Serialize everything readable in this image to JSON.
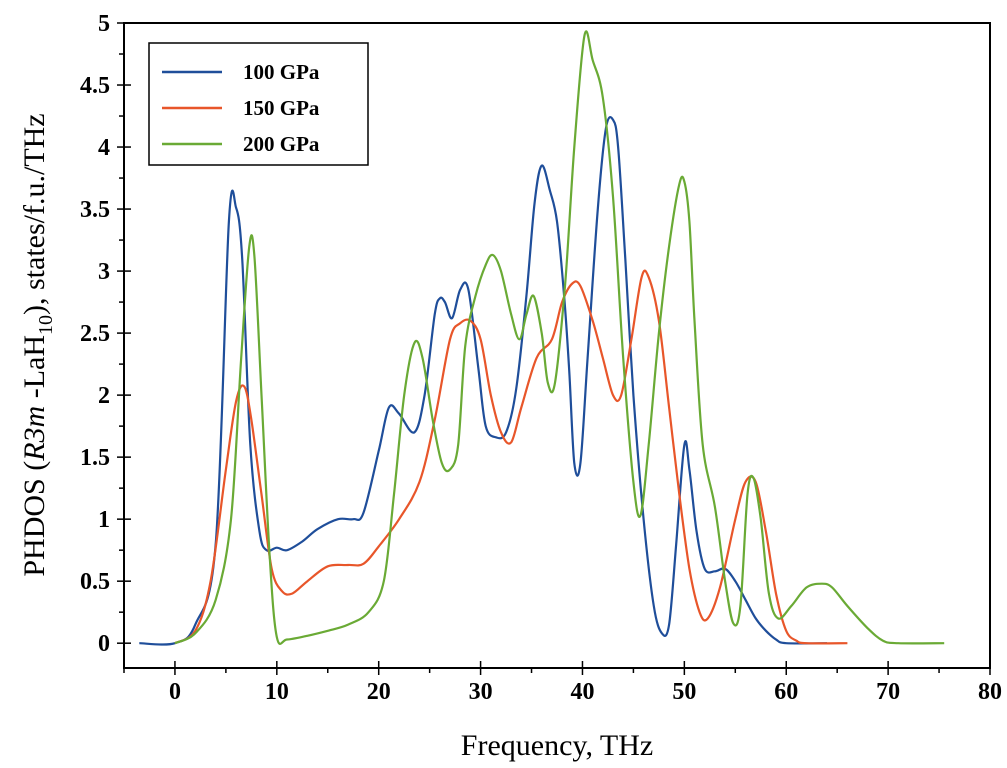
{
  "chart_data": {
    "type": "line",
    "xlabel": "Frequency, THz",
    "ylabel": {
      "prefix": "PHDOS (",
      "italic": "R3m",
      "mid": " -LaH",
      "sub": "10",
      "suffix": "), states/f.u./THz"
    },
    "xlim": [
      -5,
      80
    ],
    "ylim": [
      -0.2,
      5
    ],
    "xticks": [
      0,
      10,
      20,
      30,
      40,
      50,
      60,
      70,
      80
    ],
    "yticks": [
      0,
      0.5,
      1,
      1.5,
      2,
      2.5,
      3,
      3.5,
      4,
      4.5,
      5
    ],
    "ytick_labels": [
      "0",
      "0.5",
      "1",
      "1.5",
      "2",
      "2.5",
      "3",
      "3.5",
      "4",
      "4.5",
      "5"
    ],
    "legend_position": "top-left",
    "series": [
      {
        "name": "100 GPa",
        "color": "#1f4e9a",
        "points": [
          [
            -3.5,
            0
          ],
          [
            0,
            0
          ],
          [
            2,
            0.15
          ],
          [
            4,
            0.8
          ],
          [
            5.3,
            3.4
          ],
          [
            6,
            3.51
          ],
          [
            6.6,
            3.1
          ],
          [
            7.4,
            1.6
          ],
          [
            8.3,
            0.9
          ],
          [
            9,
            0.75
          ],
          [
            10,
            0.77
          ],
          [
            11,
            0.75
          ],
          [
            12.5,
            0.82
          ],
          [
            14,
            0.92
          ],
          [
            16,
            1.0
          ],
          [
            17.5,
            1.0
          ],
          [
            18.5,
            1.05
          ],
          [
            20,
            1.55
          ],
          [
            21,
            1.9
          ],
          [
            22,
            1.85
          ],
          [
            23.5,
            1.7
          ],
          [
            24.5,
            2.0
          ],
          [
            25.5,
            2.65
          ],
          [
            26,
            2.78
          ],
          [
            26.5,
            2.75
          ],
          [
            27.2,
            2.62
          ],
          [
            28,
            2.85
          ],
          [
            28.8,
            2.85
          ],
          [
            29.8,
            2.2
          ],
          [
            30.5,
            1.75
          ],
          [
            31.5,
            1.66
          ],
          [
            32.5,
            1.7
          ],
          [
            33.5,
            2.05
          ],
          [
            34.5,
            2.8
          ],
          [
            35.3,
            3.55
          ],
          [
            36,
            3.85
          ],
          [
            36.8,
            3.65
          ],
          [
            37.5,
            3.4
          ],
          [
            38.2,
            2.8
          ],
          [
            38.7,
            2.2
          ],
          [
            39.2,
            1.45
          ],
          [
            39.8,
            1.45
          ],
          [
            40.5,
            2.3
          ],
          [
            41.5,
            3.5
          ],
          [
            42.3,
            4.15
          ],
          [
            43,
            4.22
          ],
          [
            43.5,
            4.0
          ],
          [
            44.2,
            3.1
          ],
          [
            45,
            2.0
          ],
          [
            46,
            1.0
          ],
          [
            47,
            0.3
          ],
          [
            47.8,
            0.08
          ],
          [
            48.5,
            0.15
          ],
          [
            49.2,
            0.8
          ],
          [
            50,
            1.6
          ],
          [
            50.5,
            1.4
          ],
          [
            51.2,
            0.9
          ],
          [
            52,
            0.6
          ],
          [
            53,
            0.58
          ],
          [
            54,
            0.6
          ],
          [
            55,
            0.5
          ],
          [
            56,
            0.35
          ],
          [
            57,
            0.2
          ],
          [
            58,
            0.1
          ],
          [
            59,
            0.03
          ],
          [
            60,
            0.0
          ],
          [
            64,
            0.0
          ]
        ]
      },
      {
        "name": "150 GPa",
        "color": "#e8562a",
        "points": [
          [
            0,
            0
          ],
          [
            2,
            0.1
          ],
          [
            3.5,
            0.5
          ],
          [
            5,
            1.4
          ],
          [
            6,
            1.95
          ],
          [
            6.8,
            2.07
          ],
          [
            7.5,
            1.8
          ],
          [
            8.5,
            1.2
          ],
          [
            9.5,
            0.6
          ],
          [
            10.5,
            0.42
          ],
          [
            11.5,
            0.4
          ],
          [
            13,
            0.5
          ],
          [
            15,
            0.62
          ],
          [
            17,
            0.63
          ],
          [
            18.5,
            0.64
          ],
          [
            20,
            0.78
          ],
          [
            22,
            1.0
          ],
          [
            24,
            1.3
          ],
          [
            25.5,
            1.8
          ],
          [
            27,
            2.45
          ],
          [
            28,
            2.58
          ],
          [
            29,
            2.6
          ],
          [
            30,
            2.45
          ],
          [
            31,
            2.0
          ],
          [
            32,
            1.7
          ],
          [
            33,
            1.62
          ],
          [
            34,
            1.9
          ],
          [
            35.5,
            2.3
          ],
          [
            37,
            2.45
          ],
          [
            38,
            2.75
          ],
          [
            39,
            2.9
          ],
          [
            39.8,
            2.88
          ],
          [
            41,
            2.6
          ],
          [
            42,
            2.3
          ],
          [
            43,
            2.0
          ],
          [
            43.8,
            2.0
          ],
          [
            44.8,
            2.45
          ],
          [
            45.8,
            2.95
          ],
          [
            46.5,
            2.95
          ],
          [
            47.5,
            2.6
          ],
          [
            48.5,
            1.9
          ],
          [
            49.5,
            1.2
          ],
          [
            50.5,
            0.6
          ],
          [
            51.5,
            0.25
          ],
          [
            52.3,
            0.2
          ],
          [
            53.5,
            0.45
          ],
          [
            55,
            1.0
          ],
          [
            56,
            1.3
          ],
          [
            57,
            1.3
          ],
          [
            58,
            0.9
          ],
          [
            59,
            0.4
          ],
          [
            60,
            0.1
          ],
          [
            61,
            0.02
          ],
          [
            62,
            0
          ],
          [
            66,
            0
          ]
        ]
      },
      {
        "name": "200 GPa",
        "color": "#6aaa35",
        "points": [
          [
            0,
            0
          ],
          [
            2,
            0.08
          ],
          [
            4,
            0.35
          ],
          [
            5.5,
            1.0
          ],
          [
            6.5,
            2.3
          ],
          [
            7.3,
            3.2
          ],
          [
            7.8,
            3.12
          ],
          [
            8.5,
            2.0
          ],
          [
            9.3,
            0.7
          ],
          [
            10,
            0.05
          ],
          [
            11,
            0.03
          ],
          [
            13,
            0.06
          ],
          [
            15,
            0.1
          ],
          [
            17,
            0.15
          ],
          [
            19,
            0.25
          ],
          [
            20.5,
            0.5
          ],
          [
            21.5,
            1.2
          ],
          [
            22.5,
            2.0
          ],
          [
            23.5,
            2.42
          ],
          [
            24.3,
            2.3
          ],
          [
            25.3,
            1.8
          ],
          [
            26.2,
            1.45
          ],
          [
            27,
            1.4
          ],
          [
            27.8,
            1.6
          ],
          [
            28.5,
            2.4
          ],
          [
            29.5,
            2.8
          ],
          [
            30.5,
            3.05
          ],
          [
            31.2,
            3.13
          ],
          [
            32,
            3.0
          ],
          [
            33,
            2.65
          ],
          [
            33.8,
            2.45
          ],
          [
            34.5,
            2.65
          ],
          [
            35.2,
            2.8
          ],
          [
            36,
            2.5
          ],
          [
            36.6,
            2.1
          ],
          [
            37.3,
            2.1
          ],
          [
            38.3,
            2.9
          ],
          [
            39.2,
            4.0
          ],
          [
            40.2,
            4.9
          ],
          [
            41,
            4.7
          ],
          [
            42,
            4.4
          ],
          [
            43,
            3.6
          ],
          [
            44,
            2.3
          ],
          [
            45,
            1.3
          ],
          [
            45.7,
            1.03
          ],
          [
            46.5,
            1.6
          ],
          [
            47.5,
            2.5
          ],
          [
            48.5,
            3.2
          ],
          [
            49.5,
            3.7
          ],
          [
            50,
            3.72
          ],
          [
            50.5,
            3.4
          ],
          [
            51,
            2.6
          ],
          [
            51.8,
            1.6
          ],
          [
            53,
            1.1
          ],
          [
            54,
            0.5
          ],
          [
            54.8,
            0.16
          ],
          [
            55.5,
            0.3
          ],
          [
            56.2,
            1.2
          ],
          [
            56.8,
            1.33
          ],
          [
            57.5,
            1.0
          ],
          [
            58.3,
            0.4
          ],
          [
            59.2,
            0.2
          ],
          [
            60.5,
            0.3
          ],
          [
            62,
            0.45
          ],
          [
            63.5,
            0.48
          ],
          [
            64.5,
            0.45
          ],
          [
            66,
            0.3
          ],
          [
            68,
            0.12
          ],
          [
            69.5,
            0.02
          ],
          [
            71,
            0
          ],
          [
            75.5,
            0
          ]
        ]
      }
    ]
  }
}
